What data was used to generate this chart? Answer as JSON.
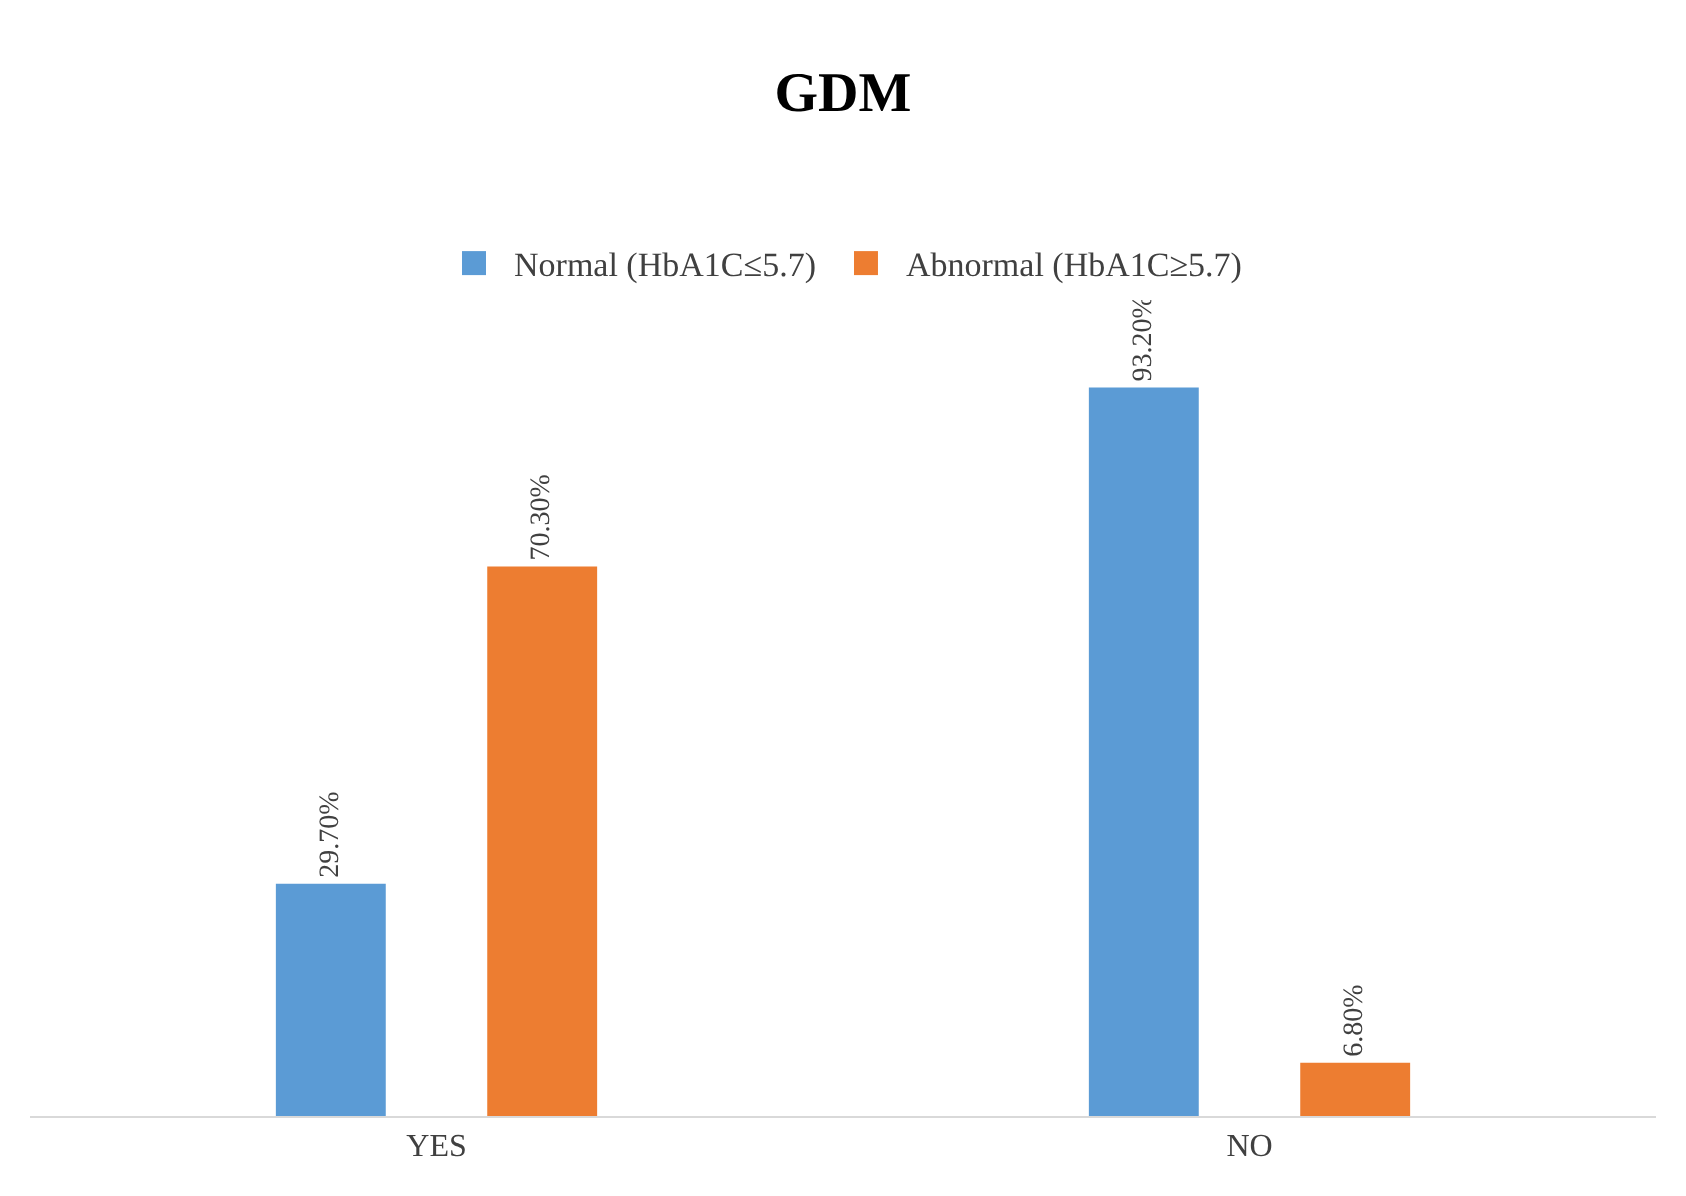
{
  "chart_data": {
    "type": "bar",
    "title": "GDM",
    "categories": [
      "YES",
      "NO"
    ],
    "series": [
      {
        "name": "Normal (HbA1C≤5.7)",
        "color": "#5b9bd5",
        "values": [
          29.7,
          93.2
        ],
        "value_labels": [
          "29.70%",
          "93.20%"
        ]
      },
      {
        "name": "Abnormal (HbA1C≥5.7)",
        "color": "#ed7d31",
        "values": [
          70.3,
          6.8
        ],
        "value_labels": [
          "70.30%",
          "6.80%"
        ]
      }
    ],
    "legend": "top"
  }
}
